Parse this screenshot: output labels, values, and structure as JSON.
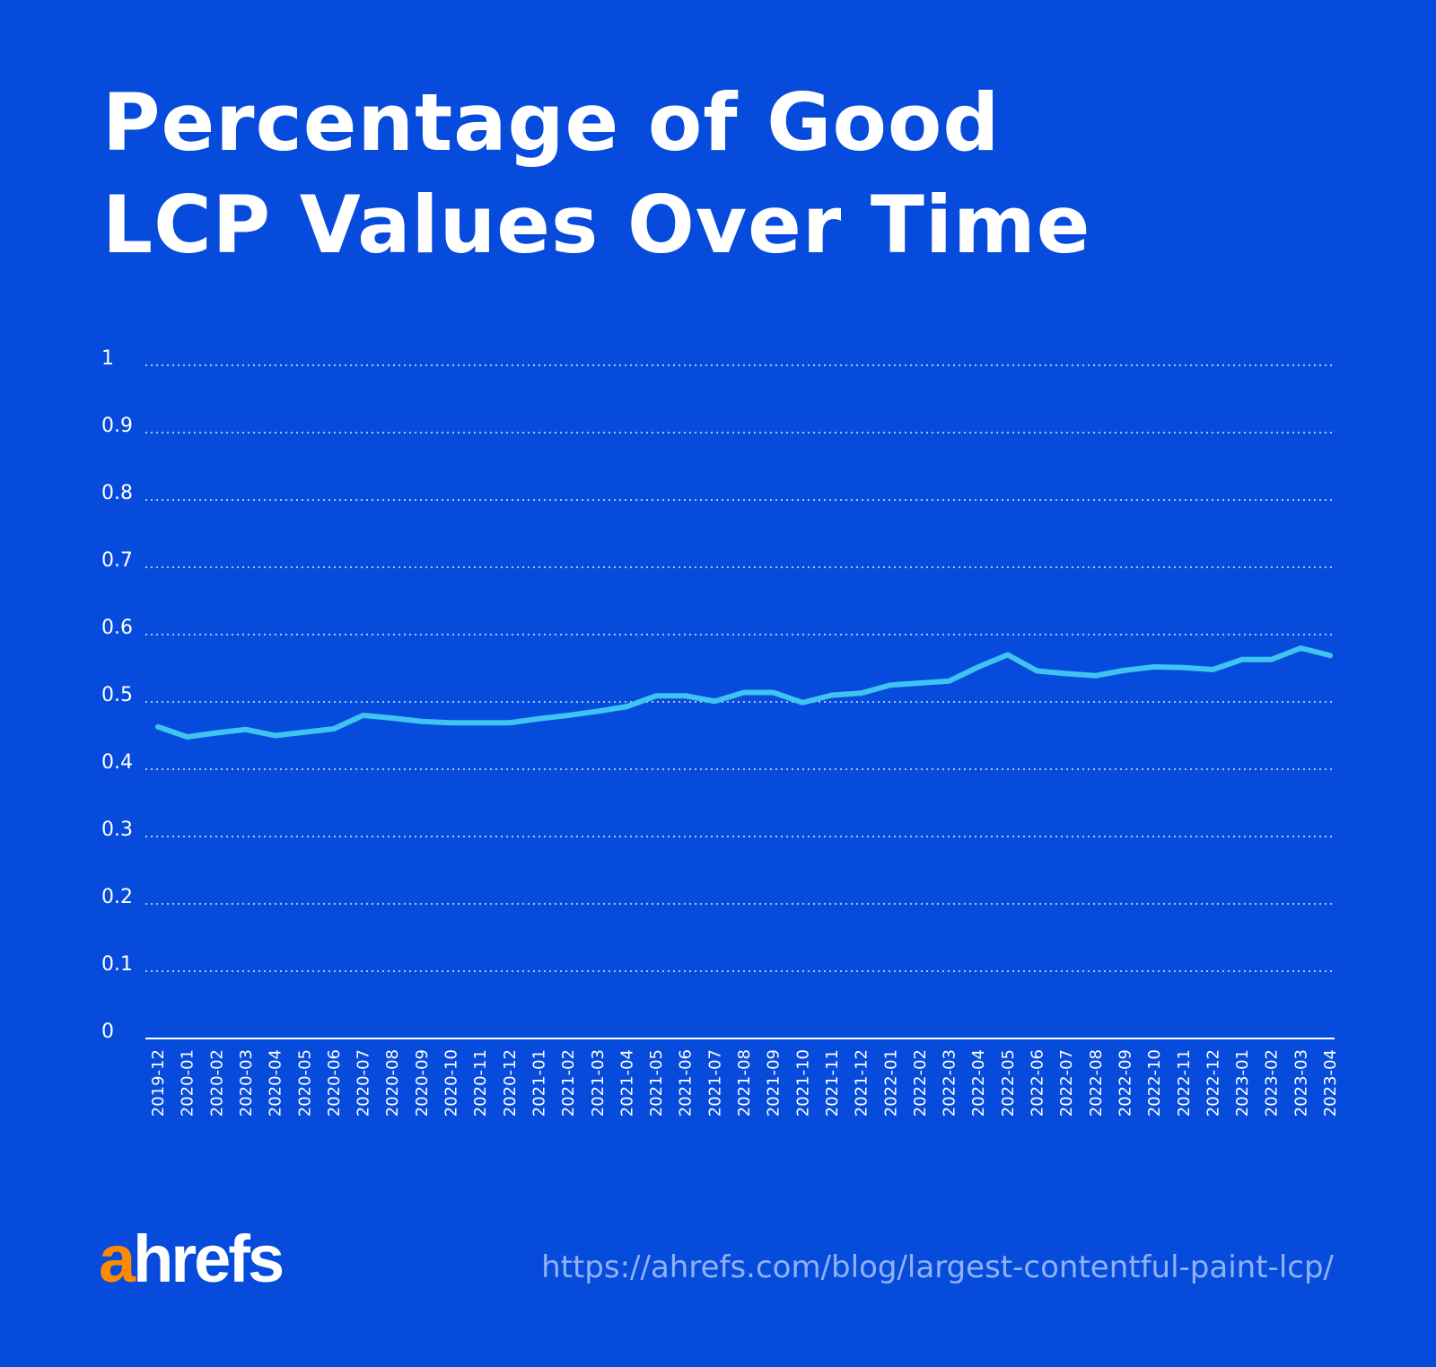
{
  "chart_data": {
    "type": "line",
    "title": "Percentage of Good LCP Values Over Time",
    "xlabel": "",
    "ylabel": "",
    "ylim": [
      0,
      1
    ],
    "yticks": [
      "0",
      "0.1",
      "0.2",
      "0.3",
      "0.4",
      "0.5",
      "0.6",
      "0.7",
      "0.8",
      "0.9",
      "1"
    ],
    "grid": "horizontal dotted",
    "line_color": "#3fc4f2",
    "background_color": "#064bdc",
    "categories": [
      "2019-12",
      "2020-01",
      "2020-02",
      "2020-03",
      "2020-04",
      "2020-05",
      "2020-06",
      "2020-07",
      "2020-08",
      "2020-09",
      "2020-10",
      "2020-11",
      "2020-12",
      "2021-01",
      "2021-02",
      "2021-03",
      "2021-04",
      "2021-05",
      "2021-06",
      "2021-07",
      "2021-08",
      "2021-09",
      "2021-10",
      "2021-11",
      "2021-12",
      "2022-01",
      "2022-02",
      "2022-03",
      "2022-04",
      "2022-05",
      "2022-06",
      "2022-07",
      "2022-08",
      "2022-09",
      "2022-10",
      "2022-11",
      "2022-12",
      "2023-01",
      "2023-02",
      "2023-03",
      "2023-04"
    ],
    "values": [
      0.463,
      0.448,
      0.454,
      0.459,
      0.45,
      0.455,
      0.46,
      0.48,
      0.476,
      0.471,
      0.469,
      0.469,
      0.469,
      0.475,
      0.48,
      0.486,
      0.493,
      0.509,
      0.509,
      0.501,
      0.514,
      0.514,
      0.499,
      0.51,
      0.513,
      0.525,
      0.528,
      0.531,
      0.552,
      0.57,
      0.546,
      0.542,
      0.539,
      0.547,
      0.552,
      0.551,
      0.548,
      0.563,
      0.563,
      0.58,
      0.569
    ]
  },
  "header": {
    "title_line1": "Percentage of Good",
    "title_line2": "LCP Values Over Time"
  },
  "footer": {
    "logo_text": "ahrefs",
    "logo_a": "a",
    "logo_rest": "hrefs",
    "url": "https://ahrefs.com/blog/largest-contentful-paint-lcp/",
    "brand_color": "#ff8a00"
  }
}
